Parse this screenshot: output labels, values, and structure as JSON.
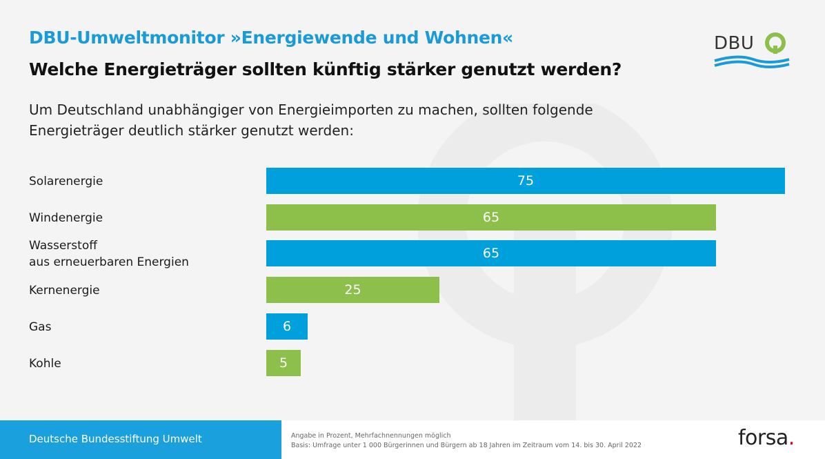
{
  "header": {
    "eyebrow": "DBU-Umweltmonitor »Energiewende und Wohnen«",
    "headline": "Welche Energieträger sollten künftig stärker genutzt werden?",
    "intro": "Um Deutschland unabhängiger von Energieimporten zu machen, sollten folgende Energieträger deutlich stärker genutzt werden:"
  },
  "logo": {
    "text": "DBU"
  },
  "colors": {
    "blue": "#00a0dc",
    "green": "#8dc04a",
    "blue_header": "#1a9bd7",
    "forsa_dot": "#e2001a"
  },
  "chart_data": {
    "type": "bar",
    "orientation": "horizontal",
    "categories": [
      "Solarenergie",
      "Windenergie",
      "Wasserstoff aus erneuerbaren Energien",
      "Kernenergie",
      "Gas",
      "Kohle"
    ],
    "category_lines": [
      [
        "Solarenergie"
      ],
      [
        "Windenergie"
      ],
      [
        "Wasserstoff",
        "aus erneuerbaren Energien"
      ],
      [
        "Kernenergie"
      ],
      [
        "Gas"
      ],
      [
        "Kohle"
      ]
    ],
    "values": [
      75,
      65,
      65,
      25,
      6,
      5
    ],
    "value_labels": [
      "75",
      "65",
      "65",
      "25",
      "6",
      "5"
    ],
    "bar_colors": [
      "#00a0dc",
      "#8dc04a",
      "#00a0dc",
      "#8dc04a",
      "#00a0dc",
      "#8dc04a"
    ],
    "xlim": [
      0,
      75
    ]
  },
  "footer": {
    "org": "Deutsche Bundesstiftung Umwelt",
    "note_line1": "Angabe in Prozent, Mehrfachnennungen möglich",
    "note_line2": "Basis: Umfrage unter 1 000 Bürgerinnen und Bürgern ab 18 Jahren im Zeitraum vom 14. bis 30. April 2022",
    "brand": "forsa",
    "brand_dot": "."
  }
}
